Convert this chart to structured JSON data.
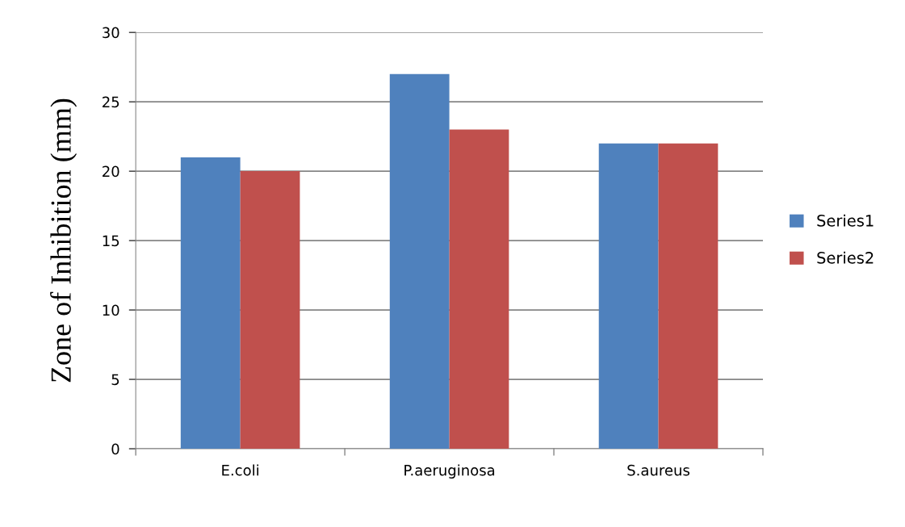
{
  "chart_data": {
    "type": "bar",
    "ylabel": "Zone of Inhibition (mm)",
    "categories": [
      "E.coli",
      "P.aeruginosa",
      "S.aureus"
    ],
    "series": [
      {
        "name": "Series1",
        "color": "#4f81bd",
        "values": [
          21,
          27,
          22
        ]
      },
      {
        "name": "Series2",
        "color": "#c0504d",
        "values": [
          20,
          23,
          22
        ]
      }
    ],
    "ylim": [
      0,
      30
    ],
    "yticks": [
      0,
      5,
      10,
      15,
      20,
      25,
      30
    ],
    "grid": "y",
    "legend": "right"
  }
}
